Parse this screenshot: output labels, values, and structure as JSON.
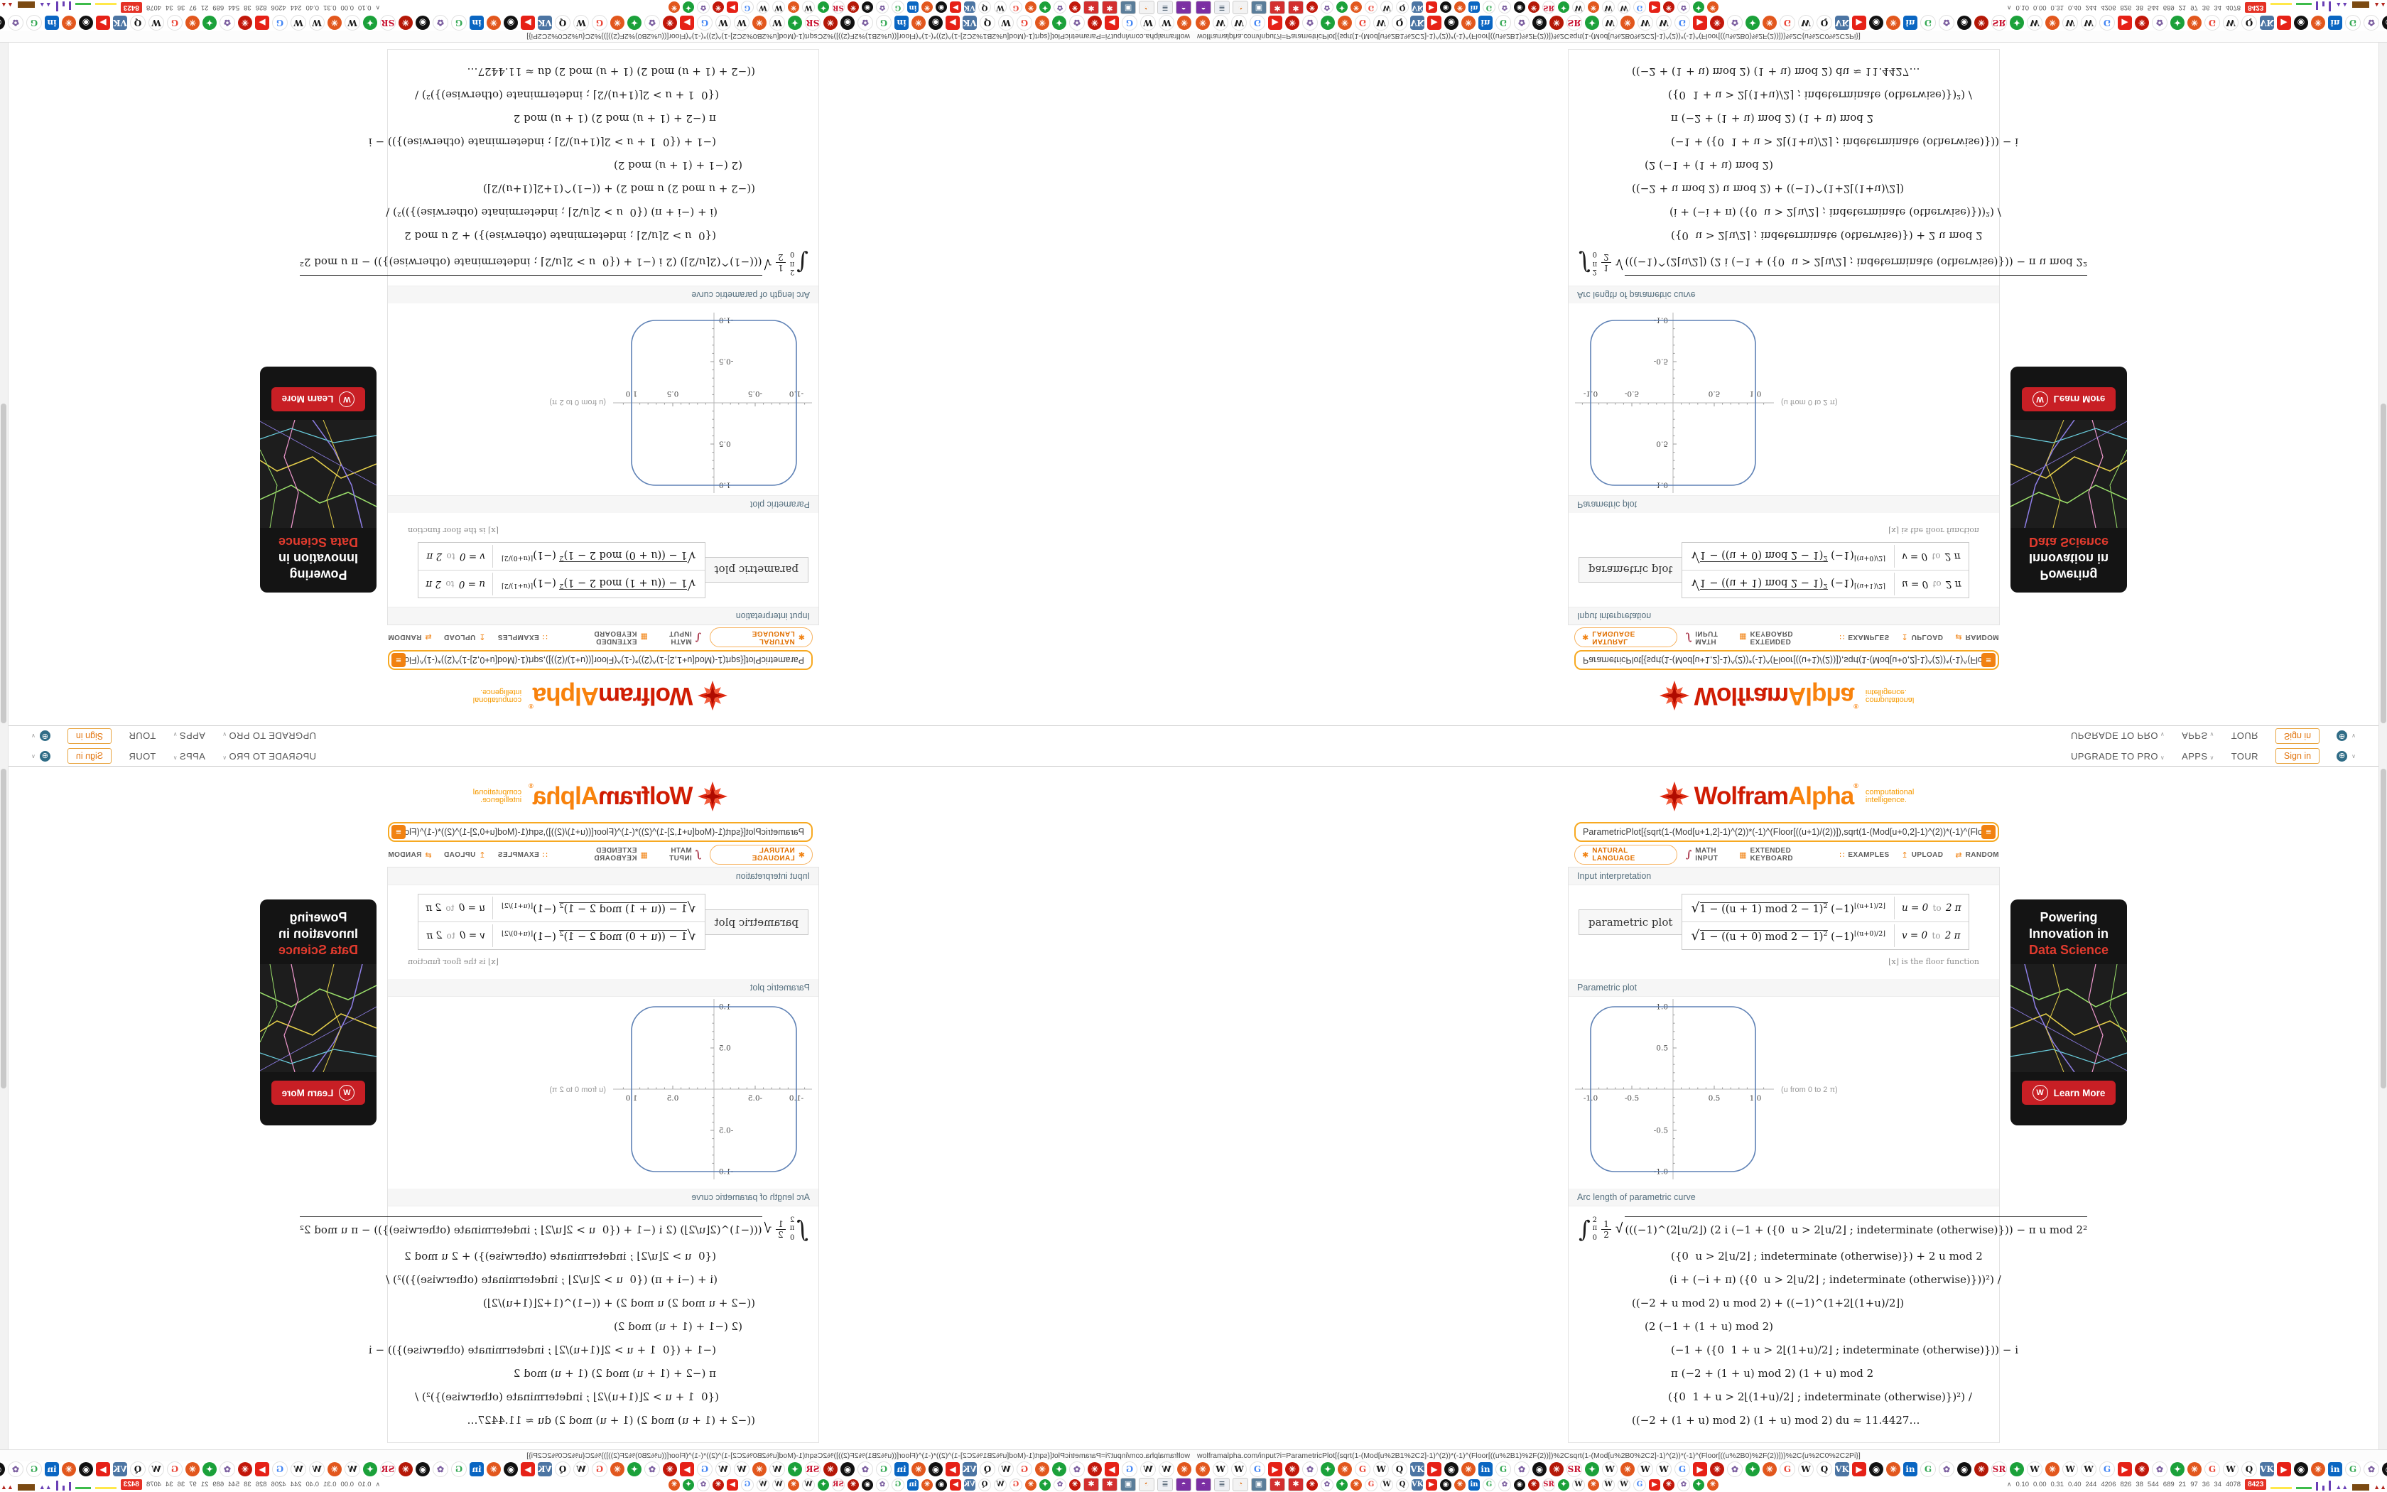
{
  "nav": {
    "upgrade_to_pro": "UPGRADE TO PRO",
    "apps": "APPS",
    "tour": "TOUR",
    "sign_in": "Sign in"
  },
  "logo": {
    "wolfram": "Wolfram",
    "alpha": "Alpha",
    "registered": "®",
    "tagline_1": "computational",
    "tagline_2": "intelligence."
  },
  "search": {
    "value": "ParametricPlot[{sqrt(1-(Mod[u+1,2]-1)^(2))*(-1)^(Floor[((u+1)/(2))]),sqrt(1-(Mod[u+0,2]-1)^(2))*(-1)^(Floo",
    "compute_glyph": "≡"
  },
  "toolbar": {
    "natural_language": "NATURAL LANGUAGE",
    "math_input": "MATH INPUT",
    "extended_keyboard": "EXTENDED KEYBOARD",
    "examples": "EXAMPLES",
    "upload": "UPLOAD",
    "random": "RANDOM"
  },
  "icons": {
    "caret_down": "∨",
    "globe": "⊕",
    "compute_equals": "≡",
    "natural_language_star": "✱",
    "math_input_integral": "∫",
    "keyboard": "▦",
    "examples_grid": "∷",
    "upload_arrow": "↥",
    "random_shuffle": "⇄",
    "sqrt": "√",
    "integral": "∫",
    "collapse_chevron": "∧",
    "wolf_initial": "W"
  },
  "pods": {
    "interp_label": "Input interpretation",
    "interp_cell": "parametric plot",
    "rows": [
      {
        "rad": "1 − ((u + 1) mod 2 − 1)",
        "rad_sup": "2",
        "base": " (−1)",
        "exp": "⌊(u+1)/2⌋",
        "range_l": "u = 0",
        "range_to": "to",
        "range_r": "2 π"
      },
      {
        "rad": "1 − ((u + 0) mod 2 − 1)",
        "rad_sup": "2",
        "base": " (−1)",
        "exp": "⌊(u+0)/2⌋",
        "range_l": "v = 0",
        "range_to": "to",
        "range_r": "2 π"
      }
    ],
    "floor_note": "⌊x⌋ is the floor function",
    "plot_label": "Parametric plot",
    "arc_label": "Arc length of parametric curve",
    "arc_int_sup": "2 π",
    "arc_int_sub": "0",
    "arc_frac_top": "1",
    "arc_frac_bot": "2",
    "arc_l1_body": "(((−1)^(2⌊u/2⌋) (2 i (−1 + ({0  u > 2⌊u/2⌋ ; indeterminate (otherwise)})) − π u mod 2²",
    "arc_lines": [
      {
        "t": "({0  u > 2⌊u/2⌋ ; indeterminate (otherwise)}) + 2 u mod 2"
      },
      {
        "t": "(i + (−i + π) ({0  u > 2⌊u/2⌋ ; indeterminate (otherwise)}))²) /"
      },
      {
        "t": "((−2 + u mod 2) u mod 2) + ((−1)^(1+2⌊(1+u)/2⌋)"
      },
      {
        "t": "(2 (−1 + (1 + u) mod 2)"
      },
      {
        "t": "(−1 + ({0  1 + u > 2⌊(1+u)/2⌋ ; indeterminate (otherwise)})) − i"
      },
      {
        "t": "π (−2 + (1 + u) mod 2) (1 + u) mod 2"
      },
      {
        "t": "({0  1 + u > 2⌊(1+u)/2⌋ ; indeterminate (otherwise)})²) /"
      },
      {
        "t": "((−2 + (1 + u) mod 2) (1 + u) mod 2) du ≈ 11.4427…"
      }
    ]
  },
  "chart_data": {
    "type": "line",
    "title": "Parametric plot",
    "description": "Closed parametric curve: square of side 2 centered at origin with rounded corners (corner radius ≈ 0.3), traced for u from 0 to 2π",
    "x_ticks": [
      -1.0,
      -0.5,
      0.5,
      1.0
    ],
    "y_ticks": [
      -1.0,
      -0.5,
      0.5,
      1.0
    ],
    "x_tick_labels": [
      "-1.0",
      "-0.5",
      "0.5",
      "1.0"
    ],
    "y_tick_labels": [
      "-1.0",
      "-0.5",
      "0.5",
      "1.0"
    ],
    "xlim": [
      -1.2,
      1.3
    ],
    "ylim": [
      -1.15,
      1.15
    ],
    "axis_note": "(u from 0 to 2 π)",
    "curve_color": "#5e81b5",
    "grid": false,
    "arc_length_result": "≈ 11.4427…"
  },
  "ad": {
    "line1": "Powering",
    "line2": "Innovation in",
    "line3": "Data Science",
    "cta": "Learn More"
  },
  "window": {
    "url_status": "wolframalpha.com/input?i=ParametricPlot[{sqrt(1-(Mod[u%2B1%2C2]-1)^(2))*(-1)^(Floor[((u%2B1)%2F(2))])%2Csqrt(1-(Mod[u%2B0%2C2]-1)^(2))*(-1)^(Floor[((u%2B0)%2F(2))])}%2C{u%2C0%2C2Pi}]",
    "stats_values": [
      "0.10",
      "0.00",
      "0.31",
      "0.40",
      "244",
      "4206",
      "826",
      "38",
      "544",
      "689",
      "21",
      "97",
      "36",
      "34",
      "4078"
    ],
    "stats_badge": "8423",
    "favicon_cycle": [
      {
        "t": "✳",
        "b": "#e2571d",
        "f": "#ffffff",
        "s": "c"
      },
      {
        "t": "W",
        "b": "#ffffff",
        "f": "#1a1a1a",
        "s": "c"
      },
      {
        "t": "W",
        "b": "#ffffff",
        "f": "#1a1a1a",
        "s": "c"
      },
      {
        "t": "G",
        "b": "#ffffff",
        "f": "#4285f4",
        "s": "c"
      },
      {
        "t": "▶",
        "b": "#e62117",
        "f": "#ffffff",
        "s": "r"
      },
      {
        "t": "✳",
        "b": "#c2170a",
        "f": "#ffffff",
        "s": "c"
      },
      {
        "t": "✿",
        "b": "#ffffff",
        "f": "#7c5fa0",
        "s": "c"
      },
      {
        "t": "✦",
        "b": "#1ba13a",
        "f": "#ffffff",
        "s": "c"
      },
      {
        "t": "✳",
        "b": "#e2571d",
        "f": "#ffffff",
        "s": "c"
      },
      {
        "t": "G",
        "b": "#ffffff",
        "f": "#ea4335",
        "s": "c"
      },
      {
        "t": "W",
        "b": "#ffffff",
        "f": "#1a1a1a",
        "s": "c"
      },
      {
        "t": "Q",
        "b": "#ffffff",
        "f": "#111111",
        "s": "c"
      },
      {
        "t": "VK",
        "b": "#4c75a3",
        "f": "#ffffff",
        "s": "r"
      },
      {
        "t": "▶",
        "b": "#e62117",
        "f": "#ffffff",
        "s": "r"
      },
      {
        "t": "◉",
        "b": "#111111",
        "f": "#ffffff",
        "s": "c"
      },
      {
        "t": "✳",
        "b": "#e2571d",
        "f": "#ffffff",
        "s": "c"
      },
      {
        "t": "in",
        "b": "#0a66c2",
        "f": "#ffffff",
        "s": "r"
      },
      {
        "t": "G",
        "b": "#ffffff",
        "f": "#34a853",
        "s": "c"
      },
      {
        "t": "✿",
        "b": "#ffffff",
        "f": "#7c5fa0",
        "s": "c"
      },
      {
        "t": "◉",
        "b": "#111111",
        "f": "#ffffff",
        "s": "c"
      },
      {
        "t": "✳",
        "b": "#b51807",
        "f": "#ffffff",
        "s": "c"
      },
      {
        "t": "SR",
        "b": "#ffffff",
        "f": "#c8102e",
        "s": "c"
      },
      {
        "t": "✦",
        "b": "#1ba13a",
        "f": "#ffffff",
        "s": "c"
      },
      {
        "t": "W",
        "b": "#ffffff",
        "f": "#1a1a1a",
        "s": "c"
      }
    ],
    "ext_icons": [
      {
        "t": "◓",
        "b": "#7b2fa3",
        "f": "#ffffff"
      },
      {
        "t": "≣",
        "b": "#eef0f4",
        "f": "#5a6b7a"
      },
      {
        "t": "◔",
        "b": "#f3f3f3",
        "f": "#e07b28"
      },
      {
        "t": "▣",
        "b": "#5a7d99",
        "f": "#ffffff"
      },
      {
        "t": "✱",
        "b": "#d32f2f",
        "f": "#ffffff"
      },
      {
        "t": "✱",
        "b": "#d32f2f",
        "f": "#ffffff"
      }
    ]
  },
  "colors": {
    "accent_orange": "#f18211",
    "input_border": "#f7a921",
    "logo_red": "#d01c03",
    "logo_orange": "#f8820c",
    "section_label": "#56707f",
    "curve_blue": "#5e81b5",
    "ad_red": "#c81f25",
    "badge_red": "#e53125"
  }
}
